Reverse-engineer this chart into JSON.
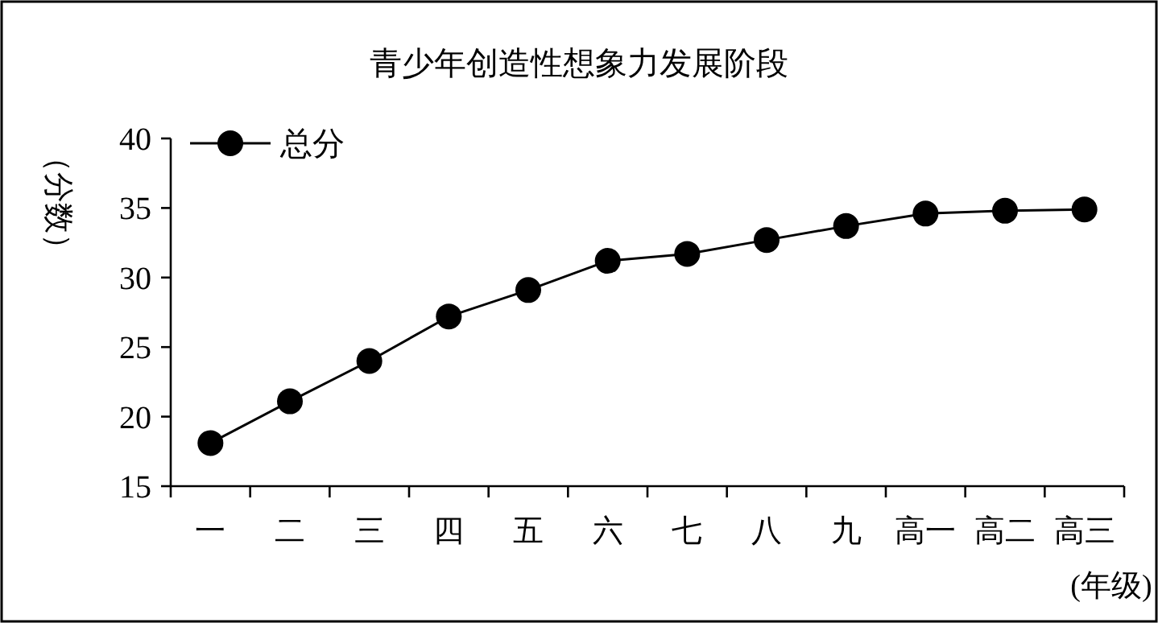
{
  "chart_data": {
    "type": "line",
    "title": "青少年创造性想象力发展阶段",
    "ylabel": "（分数）",
    "xlabel": "(年级)",
    "categories": [
      "一",
      "二",
      "三",
      "四",
      "五",
      "六",
      "七",
      "八",
      "九",
      "高一",
      "高二",
      "高三"
    ],
    "series": [
      {
        "name": "总分",
        "color": "#000000",
        "values": [
          18.1,
          21.1,
          24.0,
          27.2,
          29.1,
          31.2,
          31.7,
          32.7,
          33.7,
          34.6,
          34.8,
          34.9
        ]
      }
    ],
    "ylim": [
      15,
      40
    ],
    "yticks": [
      15,
      20,
      25,
      30,
      35,
      40
    ],
    "marker": "circle",
    "legend": "top left",
    "grid": false
  }
}
